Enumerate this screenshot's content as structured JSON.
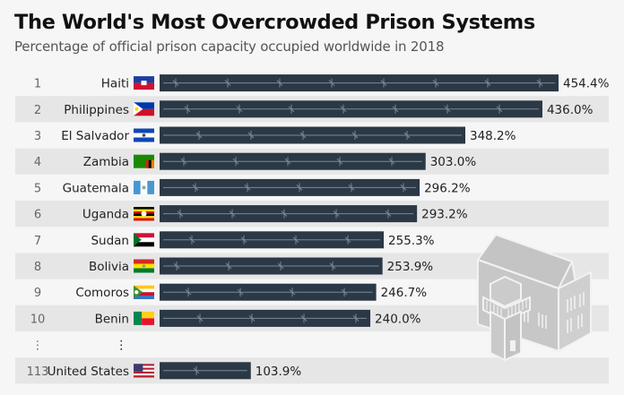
{
  "chart_data": {
    "type": "bar",
    "orientation": "horizontal",
    "title": "The World's Most Overcrowded Prison Systems",
    "subtitle": "Percentage of official prison capacity occupied worldwide in 2018",
    "value_suffix": "%",
    "xlim": [
      0,
      454.4
    ],
    "rows": [
      {
        "rank": "1",
        "country": "Haiti",
        "flag": "haiti-flag",
        "value": 454.4,
        "label": "454.4%"
      },
      {
        "rank": "2",
        "country": "Philippines",
        "flag": "philippines-flag",
        "value": 436.0,
        "label": "436.0%"
      },
      {
        "rank": "3",
        "country": "El Salvador",
        "flag": "el-salvador-flag",
        "value": 348.2,
        "label": "348.2%"
      },
      {
        "rank": "4",
        "country": "Zambia",
        "flag": "zambia-flag",
        "value": 303.0,
        "label": "303.0%"
      },
      {
        "rank": "5",
        "country": "Guatemala",
        "flag": "guatemala-flag",
        "value": 296.2,
        "label": "296.2%"
      },
      {
        "rank": "6",
        "country": "Uganda",
        "flag": "uganda-flag",
        "value": 293.2,
        "label": "293.2%"
      },
      {
        "rank": "7",
        "country": "Sudan",
        "flag": "sudan-flag",
        "value": 255.3,
        "label": "255.3%"
      },
      {
        "rank": "8",
        "country": "Bolivia",
        "flag": "bolivia-flag",
        "value": 253.9,
        "label": "253.9%"
      },
      {
        "rank": "9",
        "country": "Comoros",
        "flag": "comoros-flag",
        "value": 246.7,
        "label": "246.7%"
      },
      {
        "rank": "10",
        "country": "Benin",
        "flag": "benin-flag",
        "value": 240.0,
        "label": "240.0%"
      },
      {
        "rank": "⋮",
        "country": "⋮",
        "ellipsis": true
      },
      {
        "rank": "113",
        "country": "United States",
        "flag": "usa-flag",
        "value": 103.9,
        "label": "103.9%"
      }
    ],
    "colors": {
      "bar": "#2b3845",
      "wire": "#8a98a6",
      "stripe": "#e6e6e6",
      "background": "#f6f6f6"
    },
    "decoration": "prison-building-icon"
  }
}
